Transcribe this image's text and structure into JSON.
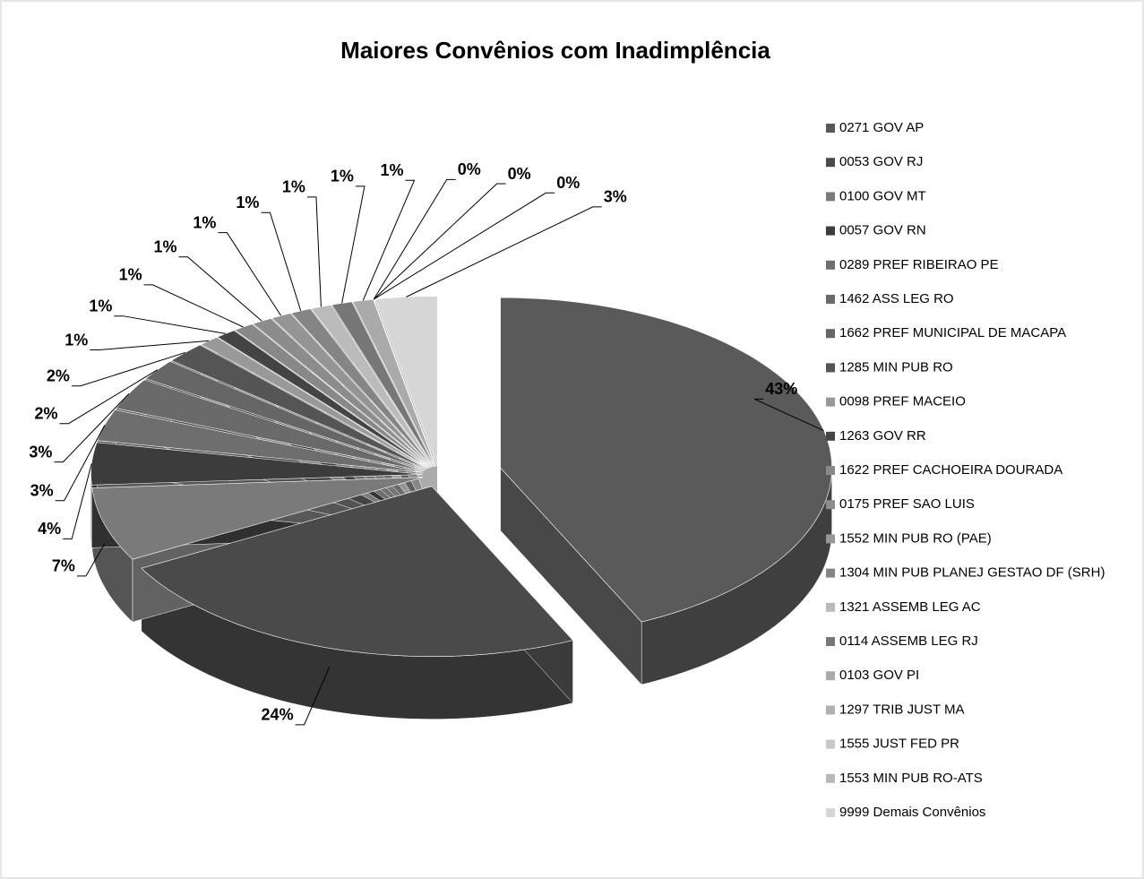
{
  "chart_data": {
    "type": "pie",
    "title": "Maiores Convênios com Inadimplência",
    "categories": [
      "0271 GOV AP",
      "0053 GOV RJ",
      "0100 GOV MT",
      "0057 GOV RN",
      "0289 PREF RIBEIRAO PE",
      "1462 ASS LEG RO",
      "1662 PREF MUNICIPAL DE MACAPA",
      "1285 MIN PUB RO",
      "0098 PREF MACEIO",
      "1263 GOV RR",
      "1622 PREF CACHOEIRA DOURADA",
      "0175 PREF SAO LUIS",
      "1552 MIN PUB RO (PAE)",
      "1304 MIN PUB PLANEJ GESTAO DF (SRH)",
      "1321 ASSEMB LEG AC",
      "0114 ASSEMB LEG RJ",
      "0103 GOV PI",
      "1297 TRIB JUST MA",
      "1555 JUST FED PR",
      "1553 MIN PUB RO-ATS",
      "9999 Demais Convênios"
    ],
    "values": [
      43,
      24,
      7,
      4,
      3,
      3,
      2,
      2,
      1,
      1,
      1,
      1,
      1,
      1,
      1,
      1,
      1,
      0,
      0,
      0,
      3
    ],
    "value_labels": [
      "43%",
      "24%",
      "7%",
      "4%",
      "3%",
      "3%",
      "2%",
      "2%",
      "1%",
      "1%",
      "1%",
      "1%",
      "1%",
      "1%",
      "1%",
      "1%",
      "1%",
      "0%",
      "0%",
      "0%",
      "3%"
    ],
    "colors": [
      "#5a5a5a",
      "#4a4a4a",
      "#7a7a7a",
      "#3c3c3c",
      "#6e6e6e",
      "#6a6a6a",
      "#666666",
      "#555555",
      "#999999",
      "#444444",
      "#888888",
      "#8c8c8c",
      "#959595",
      "#858585",
      "#bbbbbb",
      "#777777",
      "#aaaaaa",
      "#b0b0b0",
      "#c8c8c8",
      "#b8b8b8",
      "#d6d6d6"
    ],
    "legend": "right"
  }
}
